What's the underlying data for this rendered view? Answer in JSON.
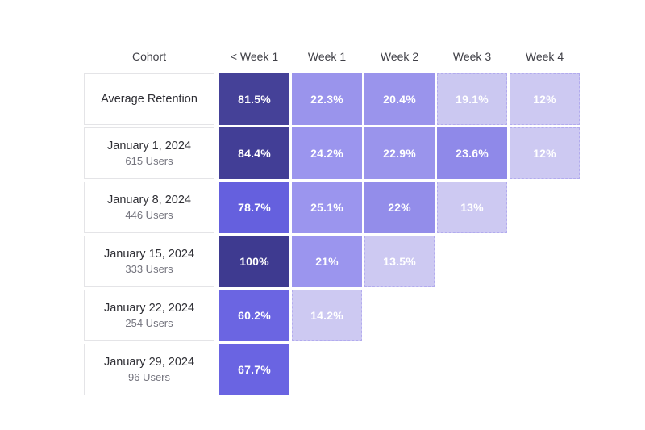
{
  "page": {
    "background": "#ffffff"
  },
  "table": {
    "header": {
      "cohort_label": "Cohort",
      "week_columns": [
        "< Week 1",
        "Week 1",
        "Week 2",
        "Week 3",
        "Week 4"
      ]
    },
    "rows": [
      {
        "label": "Average Retention",
        "sublabel": "",
        "cells": [
          {
            "value": "81.5%",
            "color": "#454198",
            "light": false
          },
          {
            "value": "22.3%",
            "color": "#9a94ec",
            "light": false
          },
          {
            "value": "20.4%",
            "color": "#9a94ec",
            "light": false
          },
          {
            "value": "19.1%",
            "color": "#cbc8f1",
            "light": true
          },
          {
            "value": "12%",
            "color": "#cdc9f2",
            "light": true
          }
        ]
      },
      {
        "label": "January 1, 2024",
        "sublabel": "615 Users",
        "cells": [
          {
            "value": "84.4%",
            "color": "#423e96",
            "light": false
          },
          {
            "value": "24.2%",
            "color": "#9b95ee",
            "light": false
          },
          {
            "value": "22.9%",
            "color": "#9a94ec",
            "light": false
          },
          {
            "value": "23.6%",
            "color": "#8f89e9",
            "light": false
          },
          {
            "value": "12%",
            "color": "#cdc9f2",
            "light": true
          }
        ]
      },
      {
        "label": "January 8, 2024",
        "sublabel": "446 Users",
        "cells": [
          {
            "value": "78.7%",
            "color": "#6560de",
            "light": false
          },
          {
            "value": "25.1%",
            "color": "#9b95ee",
            "light": false
          },
          {
            "value": "22%",
            "color": "#938dea",
            "light": false
          },
          {
            "value": "13%",
            "color": "#cdc9f2",
            "light": true
          }
        ]
      },
      {
        "label": "January 15, 2024",
        "sublabel": "333 Users",
        "cells": [
          {
            "value": "100%",
            "color": "#3e3a90",
            "light": false
          },
          {
            "value": "21%",
            "color": "#9b95ee",
            "light": false
          },
          {
            "value": "13.5%",
            "color": "#cdc9f2",
            "light": true
          }
        ]
      },
      {
        "label": "January 22, 2024",
        "sublabel": "254 Users",
        "cells": [
          {
            "value": "60.2%",
            "color": "#6b65e2",
            "light": false
          },
          {
            "value": "14.2%",
            "color": "#cdc9f2",
            "light": true
          }
        ]
      },
      {
        "label": "January 29, 2024",
        "sublabel": "96 Users",
        "cells": [
          {
            "value": "67.7%",
            "color": "#6a64e2",
            "light": false
          }
        ]
      }
    ]
  },
  "chart_data": {
    "type": "heatmap",
    "title": "Cohort retention table",
    "columns": [
      "< Week 1",
      "Week 1",
      "Week 2",
      "Week 3",
      "Week 4"
    ],
    "row_labels": [
      "Average Retention",
      "January 1, 2024",
      "January 8, 2024",
      "January 15, 2024",
      "January 22, 2024",
      "January 29, 2024"
    ],
    "row_user_counts": [
      null,
      615,
      446,
      333,
      254,
      96
    ],
    "values_percent": [
      [
        81.5,
        22.3,
        20.4,
        19.1,
        12
      ],
      [
        84.4,
        24.2,
        22.9,
        23.6,
        12
      ],
      [
        78.7,
        25.1,
        22,
        13,
        null
      ],
      [
        100,
        21,
        13.5,
        null,
        null
      ],
      [
        60.2,
        14.2,
        null,
        null,
        null
      ],
      [
        67.7,
        null,
        null,
        null,
        null
      ]
    ],
    "color_scale": {
      "low": "#cdc9f2",
      "mid": "#9a94ec",
      "high": "#3e3a90"
    },
    "legend_position": "none",
    "grid": false
  }
}
